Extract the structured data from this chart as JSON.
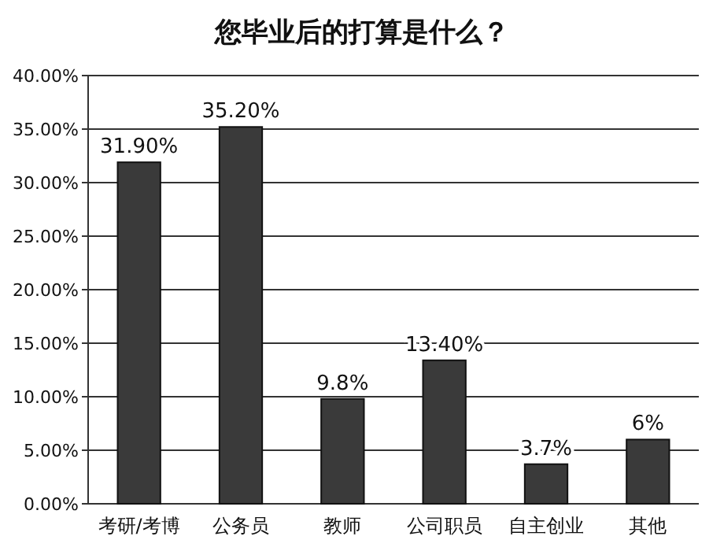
{
  "chart_data": {
    "type": "bar",
    "title": "您毕业后的打算是什么？",
    "categories": [
      "考研/考博",
      "公务员",
      "教师",
      "公司职员",
      "自主创业",
      "其他"
    ],
    "values": [
      31.9,
      35.2,
      9.8,
      13.4,
      3.7,
      6
    ],
    "value_labels": [
      "31.90%",
      "35.20%",
      "9.8%",
      "13.40%",
      "3.7%",
      "6%"
    ],
    "color": "#3a3a3a",
    "ylim": [
      0,
      40
    ],
    "yticks": [
      {
        "value": 0,
        "label": "0.00%"
      },
      {
        "value": 5,
        "label": "5.00%"
      },
      {
        "value": 10,
        "label": "10.00%"
      },
      {
        "value": 15,
        "label": "15.00%"
      },
      {
        "value": 20,
        "label": "20.00%"
      },
      {
        "value": 25,
        "label": "25.00%"
      },
      {
        "value": 30,
        "label": "30.00%"
      },
      {
        "value": 35,
        "label": "35.00%"
      },
      {
        "value": 40,
        "label": "40.00%"
      }
    ],
    "grid": "y"
  }
}
